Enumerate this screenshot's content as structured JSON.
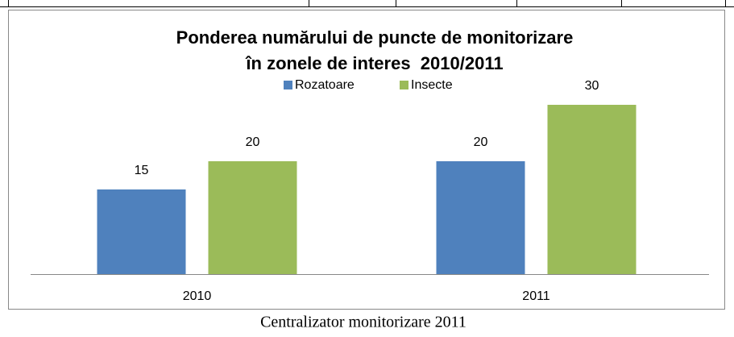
{
  "chart_data": {
    "type": "bar",
    "title": "Ponderea numărului de puncte de monitorizare în zonele de interes  2010/2011",
    "categories": [
      "2010",
      "2011"
    ],
    "series": [
      {
        "name": "Rozatoare",
        "color": "#4f81bd",
        "values": [
          15,
          20
        ]
      },
      {
        "name": "Insecte",
        "color": "#9bbb59",
        "values": [
          20,
          30
        ]
      }
    ],
    "ylim": [
      0,
      35
    ],
    "caption": "Centralizator monitorizare 2011"
  }
}
